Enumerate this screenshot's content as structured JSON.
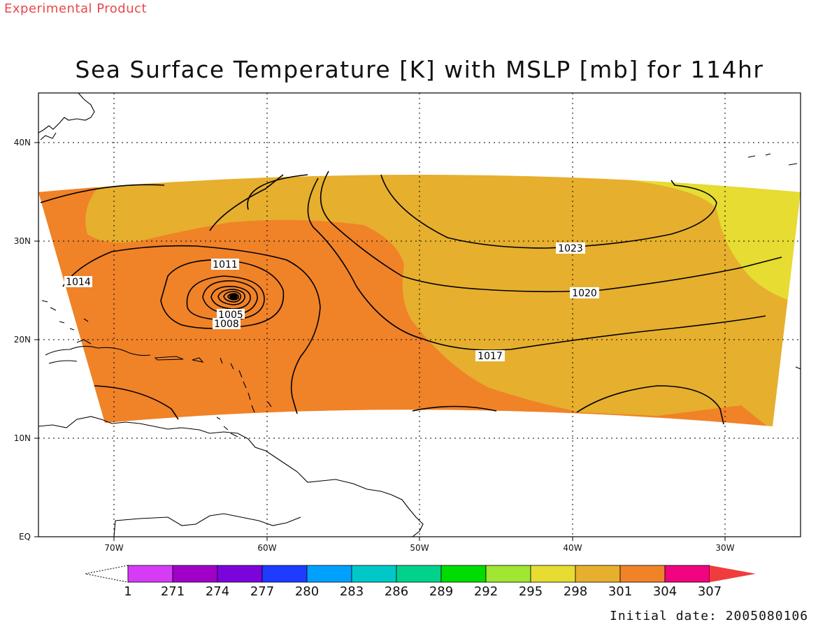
{
  "header": {
    "experimental": "Experimental Product",
    "title": "Sea Surface Temperature [K] with MSLP [mb] for 114hr"
  },
  "footer": {
    "initial_date": "Initial date: 2005080106"
  },
  "axes": {
    "lat_labels": [
      "40N",
      "30N",
      "20N",
      "10N",
      "EQ"
    ],
    "lon_labels": [
      "70W",
      "60W",
      "50W",
      "40W",
      "30W"
    ]
  },
  "contour_labels": [
    "1014",
    "1011",
    "1005",
    "1008",
    "1023",
    "1020",
    "1017"
  ],
  "colorbar": {
    "labels": [
      "1",
      "271",
      "274",
      "277",
      "280",
      "283",
      "286",
      "289",
      "292",
      "295",
      "298",
      "301",
      "304",
      "307"
    ],
    "colors": [
      "#d63cf5",
      "#a100c8",
      "#7b04dc",
      "#1e3cff",
      "#00a0ff",
      "#00c8c8",
      "#00d28c",
      "#00dc00",
      "#a0e632",
      "#e6dc32",
      "#e6af2d",
      "#f08228",
      "#f0047f",
      "#f03c3c"
    ]
  },
  "map_colors": {
    "sst_298": "#e6dc32",
    "sst_301": "#e6af2d",
    "sst_304": "#f08228",
    "land": "#ffffff",
    "coast": "#000000",
    "isobar": "#000000"
  }
}
